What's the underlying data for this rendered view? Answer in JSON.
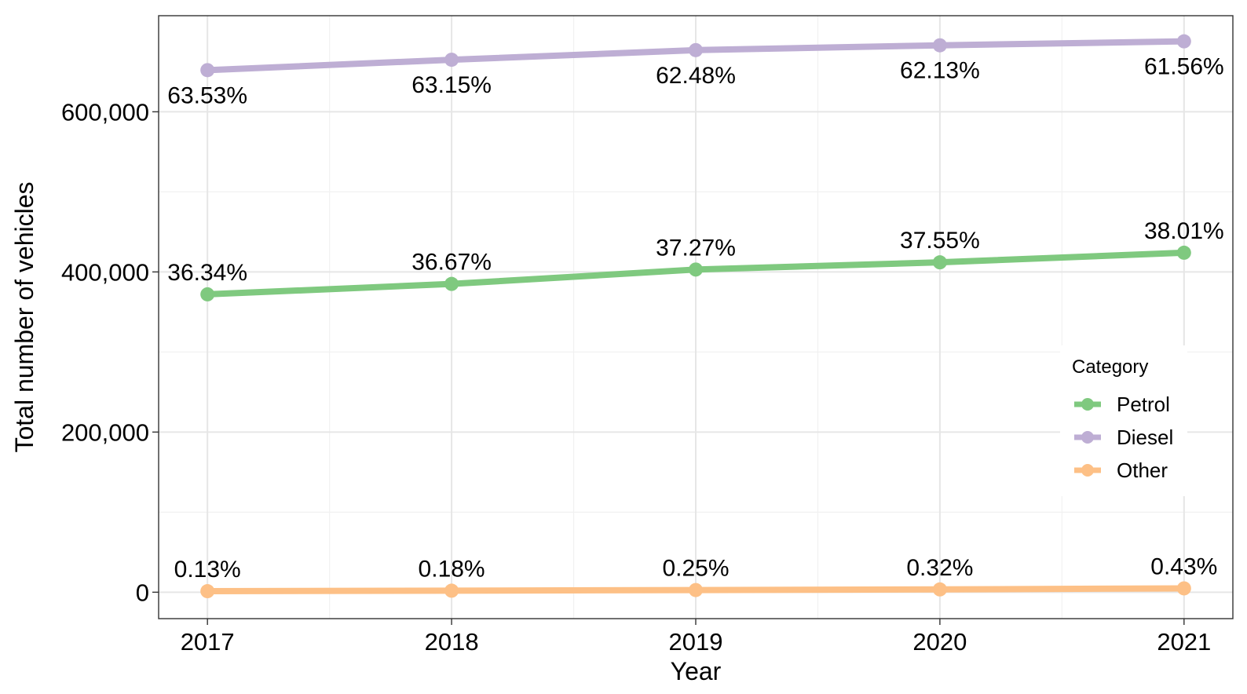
{
  "chart_data": {
    "type": "line",
    "title": "",
    "xlabel": "Year",
    "ylabel": "Total number of vehicles",
    "x": [
      2017,
      2018,
      2019,
      2020,
      2021
    ],
    "x_tick_labels": [
      "2017",
      "2018",
      "2019",
      "2020",
      "2021"
    ],
    "xlim": [
      2016.8,
      2021.2
    ],
    "ylim": [
      -33000,
      720000
    ],
    "y_ticks": [
      0,
      200000,
      400000,
      600000
    ],
    "y_tick_labels": [
      "0",
      "200,000",
      "400,000",
      "600,000"
    ],
    "grid": true,
    "legend": {
      "title": "Category",
      "placement": "right"
    },
    "series": [
      {
        "name": "Petrol",
        "color": "#7fc97f",
        "values": [
          372000,
          385000,
          403000,
          412000,
          424000
        ],
        "labels": [
          "36.34%",
          "36.67%",
          "37.27%",
          "37.55%",
          "38.01%"
        ]
      },
      {
        "name": "Diesel",
        "color": "#beaed4",
        "values": [
          652000,
          665000,
          677000,
          683000,
          688000
        ],
        "labels": [
          "63.53%",
          "63.15%",
          "62.48%",
          "62.13%",
          "61.56%"
        ]
      },
      {
        "name": "Other",
        "color": "#fdc086",
        "values": [
          1300,
          1900,
          2700,
          3500,
          4800
        ],
        "labels": [
          "0.13%",
          "0.18%",
          "0.25%",
          "0.32%",
          "0.43%"
        ]
      }
    ]
  }
}
